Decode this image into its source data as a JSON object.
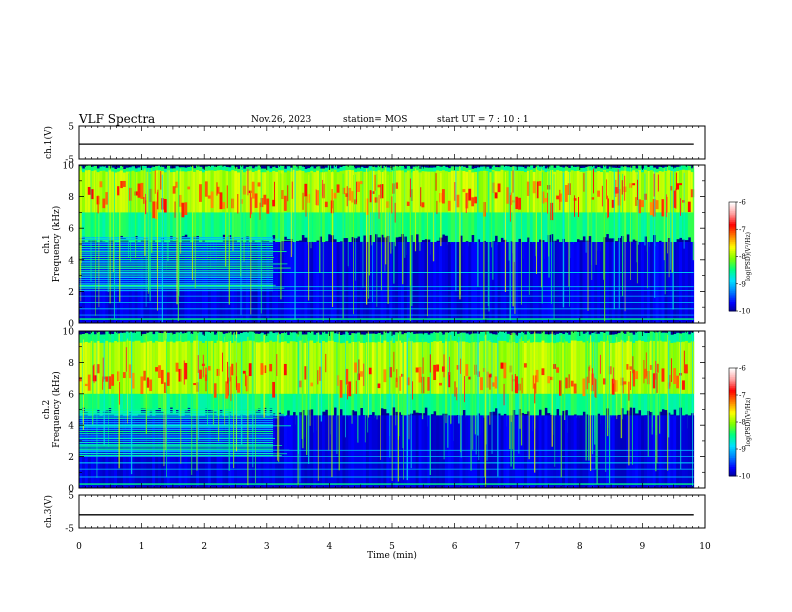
{
  "header": {
    "title": "VLF Spectra",
    "date": "Nov.26, 2023",
    "station": "station= MOS",
    "start": "start  UT =   7 : 10 : 1"
  },
  "colors": {
    "spectrogram_scale": [
      "#00007a",
      "#0000ff",
      "#0080ff",
      "#00e0ff",
      "#00ff80",
      "#80ff00",
      "#ffff00",
      "#ff8000",
      "#ff0000",
      "#ffa0a0",
      "#ffffff"
    ],
    "trace": "#000000"
  },
  "chart_data": [
    {
      "type": "line",
      "ylabel": "ch.1(V)",
      "ylim": [
        -5,
        5
      ],
      "yticks": [
        "5",
        "-5"
      ],
      "series": [
        {
          "values_approx_constant": -0.5
        }
      ]
    },
    {
      "type": "heatmap",
      "ylabel": "ch.1\nFrequency (kHz)",
      "ylim": [
        0,
        10
      ],
      "yticks": [
        "0",
        "2",
        "4",
        "6",
        "8",
        "10"
      ],
      "colorbar": {
        "label": "log(PSD)(V²/Hz)",
        "ticks": [
          "-6",
          "-7",
          "-8",
          "-9",
          "-10"
        ],
        "range": [
          -10,
          -6
        ]
      },
      "features": {
        "sferic_band_kHz": [
          5,
          10
        ],
        "peak_band_kHz": [
          7,
          9
        ],
        "interference_lines_until_min": 3.1
      }
    },
    {
      "type": "heatmap",
      "ylabel": "ch.2\nFrequency (kHz)",
      "ylim": [
        0,
        10
      ],
      "yticks": [
        "0",
        "2",
        "4",
        "6",
        "8",
        "10"
      ],
      "colorbar": {
        "label": "log(PSD)(V²/Hz)",
        "ticks": [
          "-6",
          "-7",
          "-8",
          "-9",
          "-10"
        ],
        "range": [
          -10,
          -6
        ]
      },
      "features": {
        "sferic_band_kHz": [
          4.5,
          10
        ],
        "peak_band_kHz": [
          6,
          8
        ],
        "interference_lines_until_min": 3.1
      }
    },
    {
      "type": "line",
      "ylabel": "ch.3(V)",
      "ylim": [
        -5,
        5
      ],
      "yticks": [
        "5",
        "-5"
      ],
      "series": [
        {
          "values_approx_constant": -1.0
        }
      ]
    }
  ],
  "xaxis": {
    "label": "Time  (min)",
    "range": [
      0,
      10
    ],
    "ticks": [
      "0",
      "1",
      "2",
      "3",
      "4",
      "5",
      "6",
      "7",
      "8",
      "9",
      "10"
    ]
  }
}
